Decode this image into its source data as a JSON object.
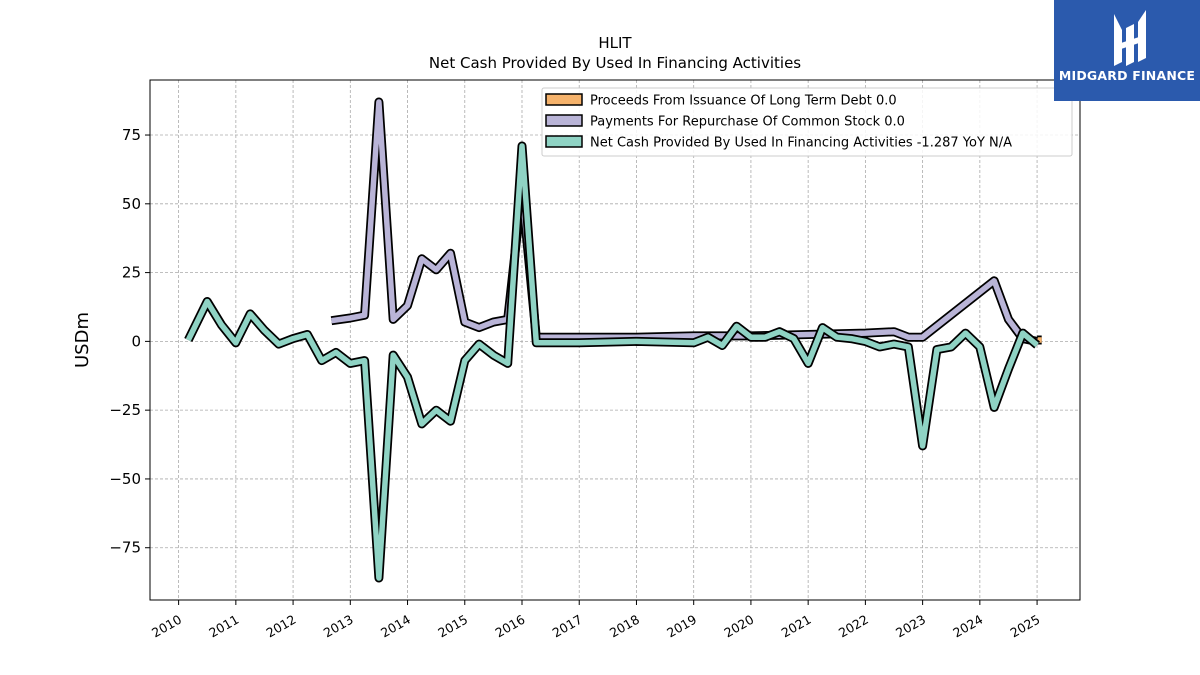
{
  "logo": {
    "text": "MIDGARD FINANCE"
  },
  "colors": {
    "proceeds": "#f5b26b",
    "repurchase": "#b9b4d7",
    "net": "#8fd3c4",
    "logo_bg": "#2b5aad"
  },
  "chart_data": {
    "type": "line",
    "title": "HLIT",
    "subtitle": "Net Cash Provided By Used In Financing Activities",
    "ylabel": "USDm",
    "xlabel": "",
    "xlim": [
      2009.5,
      2025.75
    ],
    "ylim": [
      -94,
      95
    ],
    "yticks": [
      75,
      50,
      25,
      0,
      -25,
      -50,
      -75
    ],
    "ytick_labels": [
      "75",
      "50",
      "25",
      "0",
      "−25",
      "−50",
      "−75"
    ],
    "xticks": [
      "2010",
      "2011",
      "2012",
      "2013",
      "2014",
      "2015",
      "2016",
      "2017",
      "2018",
      "2019",
      "2020",
      "2021",
      "2022",
      "2023",
      "2024",
      "2025"
    ],
    "grid": true,
    "legend_position": "top-right",
    "series": [
      {
        "name": "Proceeds From Issuance Of Long Term Debt  0.0",
        "key": "proceeds",
        "x": [
          2025.0,
          2025.08
        ],
        "y": [
          0.5,
          0.5
        ]
      },
      {
        "name": "Payments For Repurchase Of Common Stock  0.0",
        "key": "repurchase",
        "x": [
          2012.67,
          2013.0,
          2013.25,
          2013.5,
          2013.75,
          2014.0,
          2014.25,
          2014.5,
          2014.75,
          2015.0,
          2015.25,
          2015.5,
          2015.75,
          2016.0,
          2016.25,
          2017.0,
          2018.0,
          2019.0,
          2020.0,
          2021.0,
          2022.0,
          2022.5,
          2022.75,
          2023.0,
          2024.25,
          2024.5,
          2024.75,
          2025.0
        ],
        "y": [
          7.5,
          8.5,
          9.5,
          87,
          8,
          13,
          30,
          26,
          32,
          7,
          5,
          7,
          8,
          55,
          1.5,
          1.5,
          1.5,
          2,
          2,
          2.5,
          3,
          3.5,
          1.5,
          1.5,
          22,
          8,
          1,
          0
        ]
      },
      {
        "name": "Net Cash Provided By Used In Financing Activities  -1.287 YoY N/A",
        "key": "net",
        "x": [
          2010.17,
          2010.5,
          2010.75,
          2011.0,
          2011.25,
          2011.5,
          2011.75,
          2012.0,
          2012.25,
          2012.5,
          2012.75,
          2013.0,
          2013.25,
          2013.5,
          2013.75,
          2014.0,
          2014.25,
          2014.5,
          2014.75,
          2015.0,
          2015.25,
          2015.5,
          2015.75,
          2016.0,
          2016.25,
          2017.0,
          2018.0,
          2019.0,
          2019.25,
          2019.5,
          2019.75,
          2020.0,
          2020.25,
          2020.5,
          2020.75,
          2021.0,
          2021.25,
          2021.5,
          2021.75,
          2022.0,
          2022.25,
          2022.5,
          2022.75,
          2023.0,
          2023.25,
          2023.5,
          2023.75,
          2024.0,
          2024.25,
          2024.5,
          2024.75,
          2025.0
        ],
        "y": [
          0.5,
          14.5,
          6,
          -0.5,
          10,
          4,
          -1,
          1,
          2.5,
          -7,
          -4,
          -8,
          -7,
          -86,
          -5,
          -13,
          -30,
          -25,
          -29,
          -7,
          -1,
          -5,
          -8,
          71,
          -0.5,
          -0.5,
          0,
          -0.5,
          1.5,
          -1.5,
          5.5,
          1.5,
          1.5,
          3.5,
          1,
          -8,
          5,
          1.5,
          1,
          0,
          -2,
          -1,
          -2,
          -38,
          -3,
          -2,
          3,
          -2,
          -24,
          -10,
          3,
          -1.3
        ]
      }
    ]
  }
}
